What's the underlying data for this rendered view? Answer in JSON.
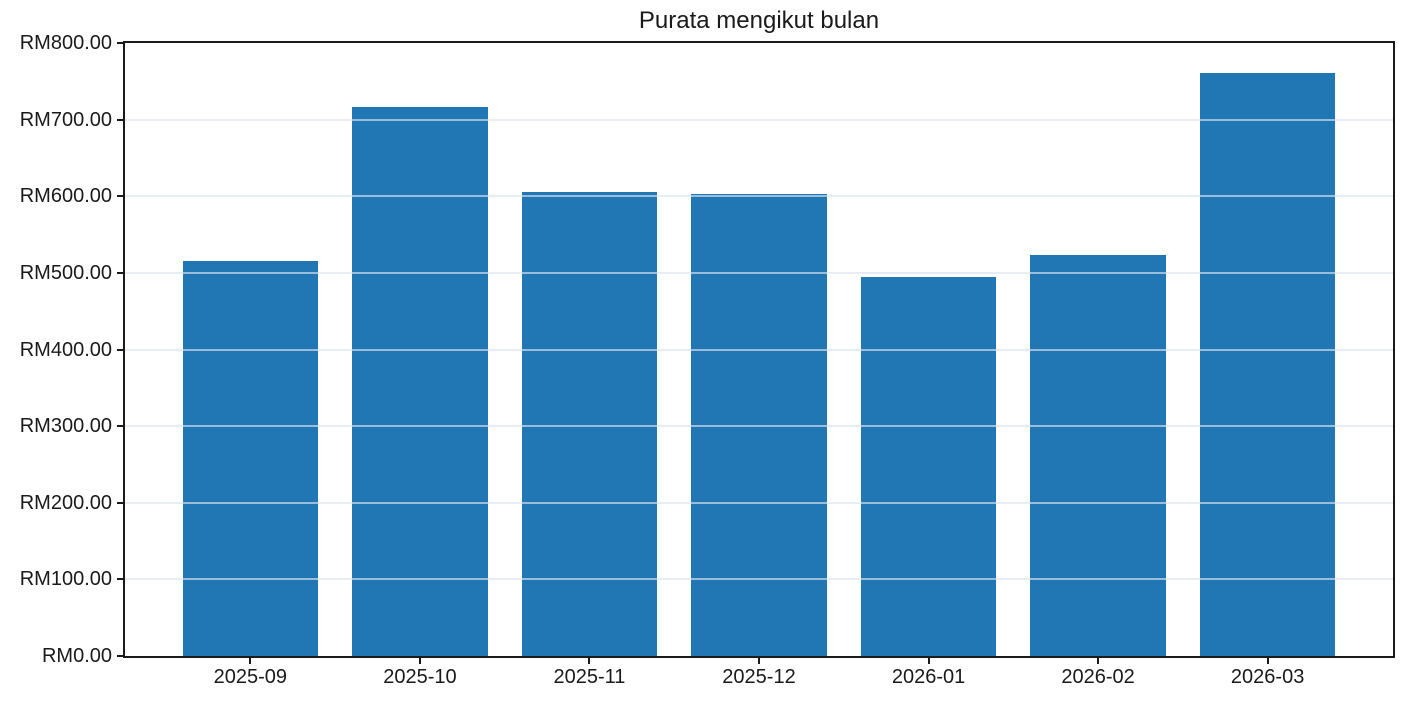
{
  "chart_data": {
    "type": "bar",
    "title": "Purata mengikut bulan",
    "categories": [
      "2025-09",
      "2025-10",
      "2025-11",
      "2025-12",
      "2026-01",
      "2026-02",
      "2026-03"
    ],
    "values": [
      516,
      716,
      605,
      603,
      495,
      523,
      761
    ],
    "xlabel": "",
    "ylabel": "",
    "ylim": [
      0,
      800
    ],
    "ytick_step": 100,
    "ytick_labels": [
      "RM0.00",
      "RM100.00",
      "RM200.00",
      "RM300.00",
      "RM400.00",
      "RM500.00",
      "RM600.00",
      "RM700.00",
      "RM800.00"
    ],
    "currency_prefix": "RM",
    "grid": "horizontal",
    "legend_position": "none",
    "bar_color": "#2077b4",
    "background_color": "#ffffff",
    "axis_color": "#1a1a1a",
    "gridline_color": "#dce3ec"
  }
}
